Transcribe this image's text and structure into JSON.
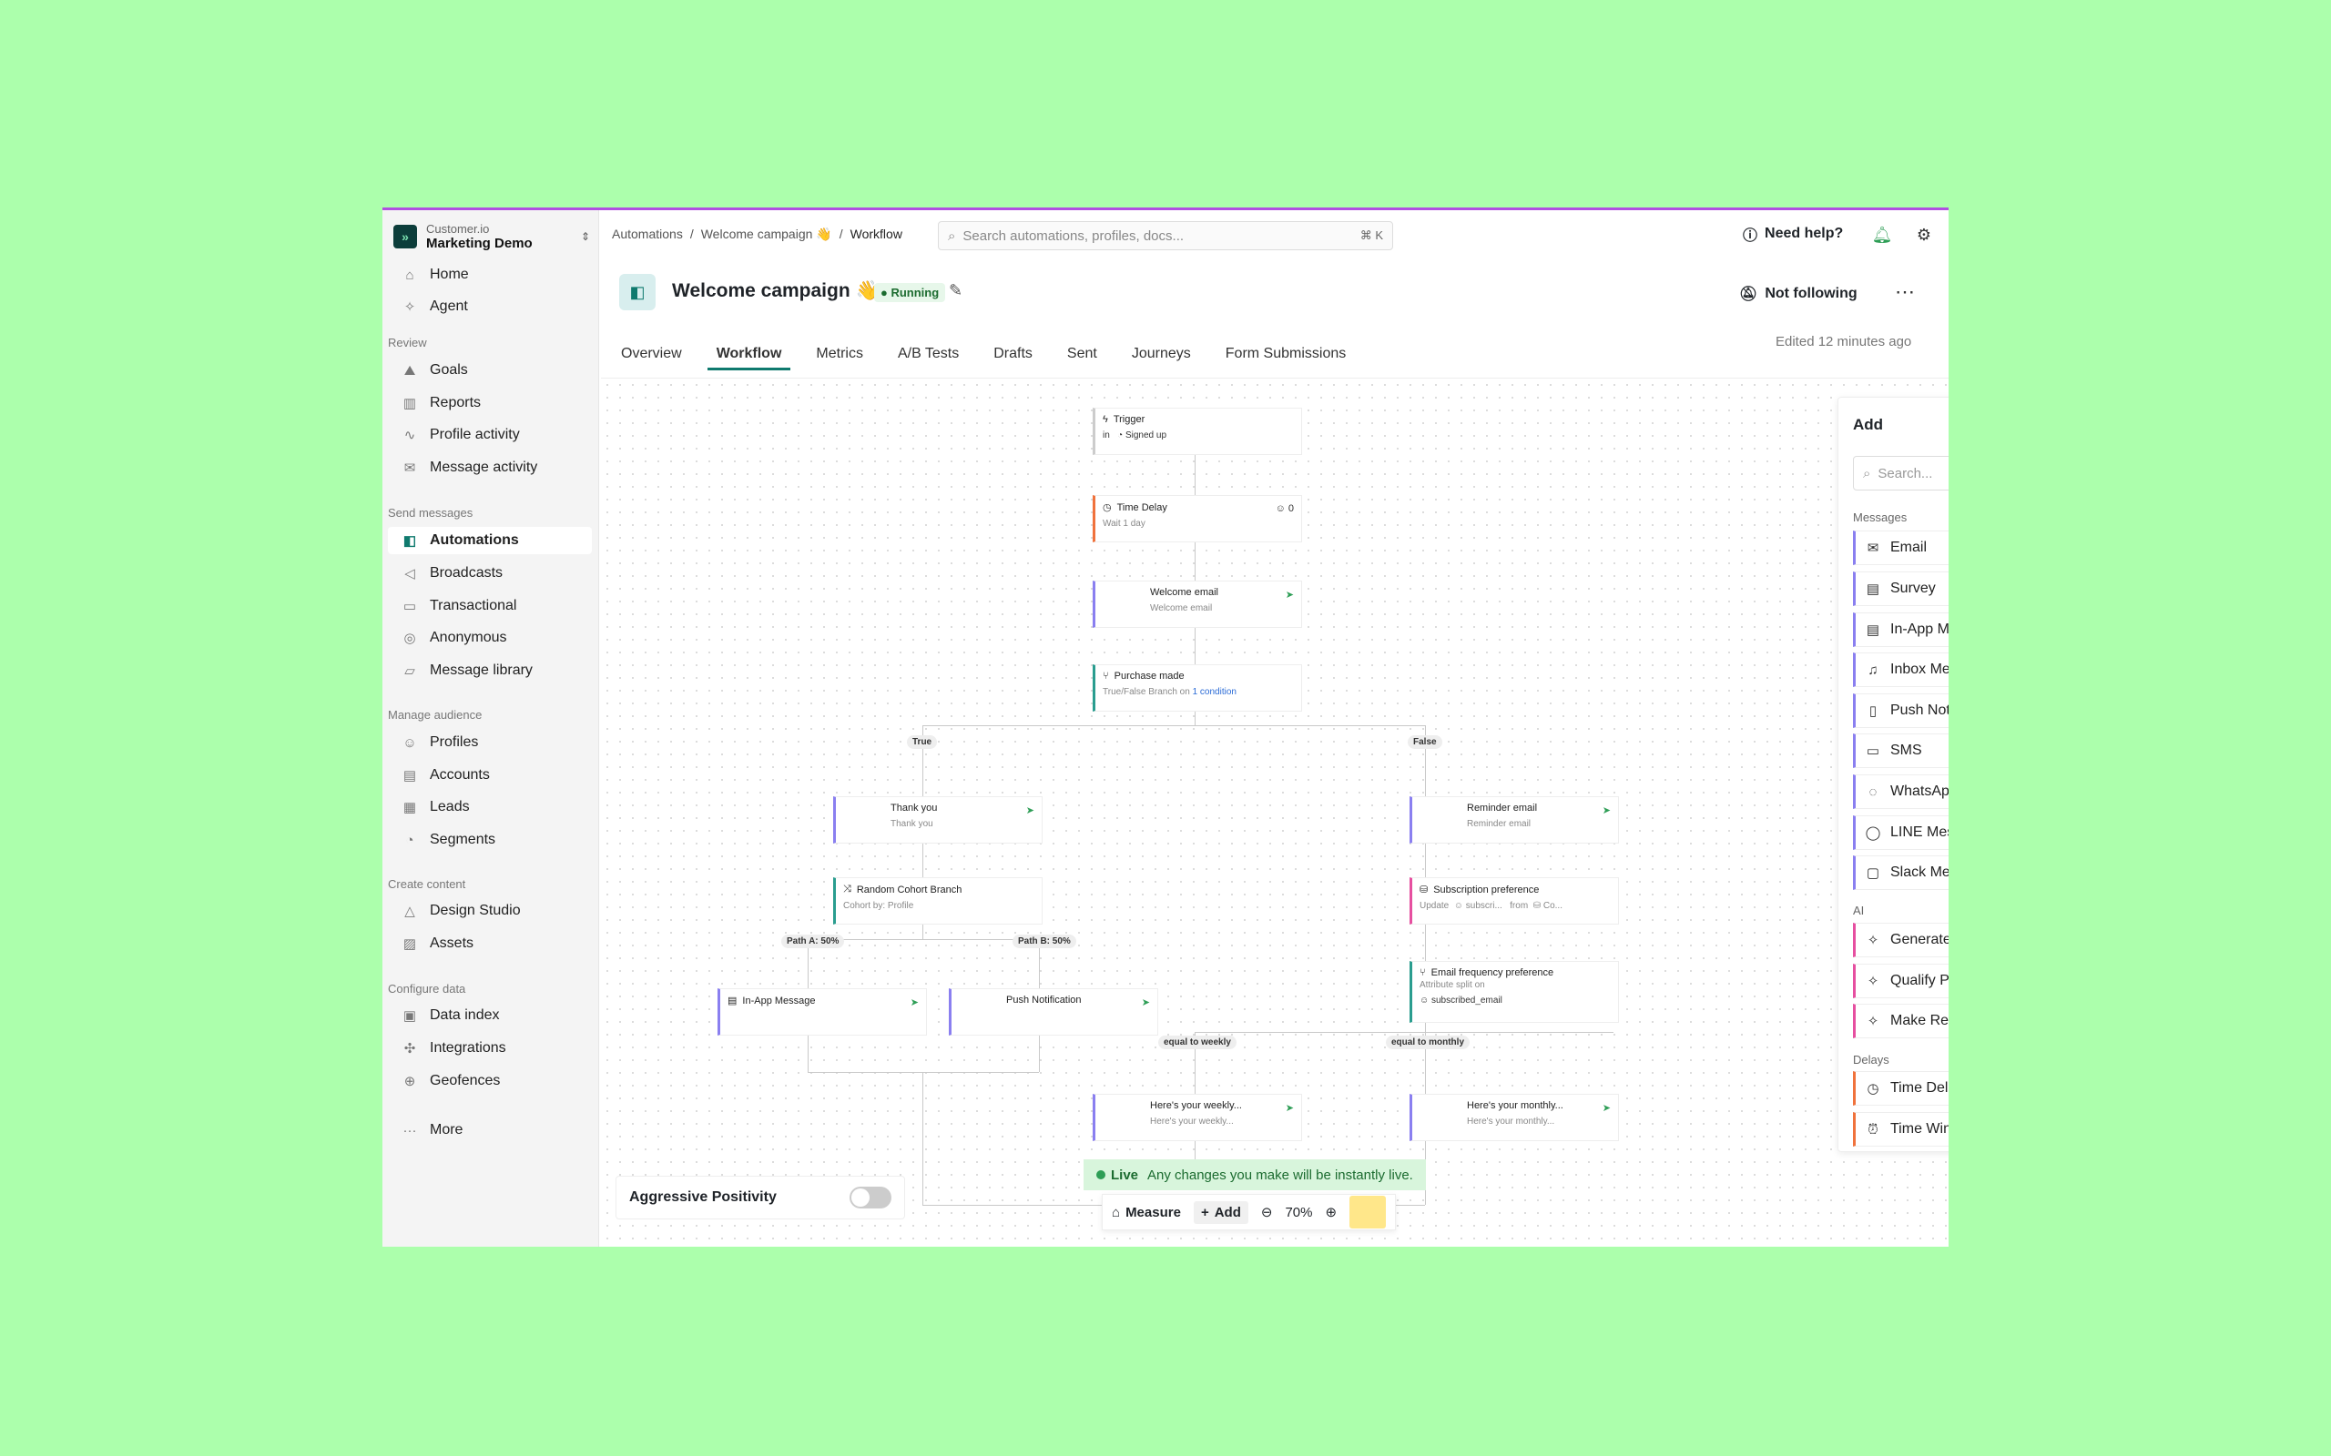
{
  "workspace": {
    "org": "Customer.io",
    "name": "Marketing Demo"
  },
  "sidebar": {
    "top": [
      {
        "label": "Home",
        "icon": "home-icon"
      },
      {
        "label": "Agent",
        "icon": "sparkle-icon"
      }
    ],
    "groups": [
      {
        "title": "Review",
        "items": [
          "Goals",
          "Reports",
          "Profile activity",
          "Message activity"
        ]
      },
      {
        "title": "Send messages",
        "items": [
          "Automations",
          "Broadcasts",
          "Transactional",
          "Anonymous",
          "Message library"
        ]
      },
      {
        "title": "Manage audience",
        "items": [
          "Profiles",
          "Accounts",
          "Leads",
          "Segments"
        ]
      },
      {
        "title": "Create content",
        "items": [
          "Design Studio",
          "Assets"
        ]
      },
      {
        "title": "Configure data",
        "items": [
          "Data index",
          "Integrations",
          "Geofences"
        ]
      }
    ],
    "more": "More",
    "active": "Automations"
  },
  "breadcrumb": [
    "Automations",
    "Welcome campaign 👋",
    "Workflow"
  ],
  "search": {
    "placeholder": "Search automations, profiles, docs...",
    "shortcut": "⌘ K"
  },
  "help": "Need help?",
  "campaign": {
    "title": "Welcome campaign 👋",
    "status": "Running",
    "follow": "Not following",
    "edited": "Edited 12 minutes ago"
  },
  "tabs": [
    "Overview",
    "Workflow",
    "Metrics",
    "A/B Tests",
    "Drafts",
    "Sent",
    "Journeys",
    "Form Submissions"
  ],
  "active_tab": "Workflow",
  "workflow": {
    "trigger": {
      "title": "Trigger",
      "sub_in": "in",
      "sub": "Signed up"
    },
    "delay": {
      "title": "Time Delay",
      "sub": "Wait 1 day",
      "count": "0"
    },
    "welcome": {
      "title": "Welcome email",
      "sub": "Welcome email"
    },
    "purchase": {
      "title": "Purchase made",
      "sub": "True/False Branch on",
      "link": "1 condition"
    },
    "true_label": "True",
    "false_label": "False",
    "thankyou": {
      "title": "Thank you",
      "sub": "Thank you"
    },
    "reminder": {
      "title": "Reminder email",
      "sub": "Reminder email"
    },
    "cohort": {
      "title": "Random Cohort Branch",
      "sub": "Cohort by: Profile"
    },
    "subscription": {
      "title": "Subscription preference",
      "a": "Update",
      "b": "subscri...",
      "c": "from",
      "d": "Co..."
    },
    "path_a": "Path A: 50%",
    "path_b": "Path B: 50%",
    "inapp": {
      "title": "In-App Message"
    },
    "push": {
      "title": "Push Notification"
    },
    "freq": {
      "title": "Email frequency preference",
      "sub": "Attribute split on",
      "attr": "subscribed_email"
    },
    "weekly_label": "equal to weekly",
    "monthly_label": "equal to monthly",
    "weekly": {
      "title": "Here's your weekly...",
      "sub": "Here's your weekly..."
    },
    "monthly": {
      "title": "Here's your monthly...",
      "sub": "Here's your monthly..."
    }
  },
  "add_panel": {
    "title": "Add",
    "search_placeholder": "Search...",
    "messages_title": "Messages",
    "messages": [
      {
        "label": "Email",
        "icon": "mail-icon"
      },
      {
        "label": "Survey",
        "icon": "survey-icon"
      },
      {
        "label": "In-App Message",
        "icon": "inapp-icon"
      },
      {
        "label": "Inbox Message",
        "icon": "bell-icon"
      },
      {
        "label": "Push Notification",
        "icon": "phone-icon"
      },
      {
        "label": "SMS",
        "icon": "sms-icon"
      },
      {
        "label": "WhatsApp",
        "icon": "whatsapp-icon"
      },
      {
        "label": "LINE Message",
        "icon": "line-icon"
      },
      {
        "label": "Slack Message",
        "icon": "slack-icon"
      }
    ],
    "ai_title": "AI",
    "ai": [
      {
        "label": "Generate Content..."
      },
      {
        "label": "Qualify Profiles..."
      },
      {
        "label": "Make Recommendation..."
      }
    ],
    "delays_title": "Delays",
    "delays": [
      {
        "label": "Time Delay"
      },
      {
        "label": "Time Window"
      }
    ]
  },
  "aggressive": "Aggressive Positivity",
  "live": {
    "badge": "Live",
    "text": "Any changes you make will be instantly live."
  },
  "toolbar": {
    "measure": "Measure",
    "add": "Add",
    "zoom": "70%"
  }
}
